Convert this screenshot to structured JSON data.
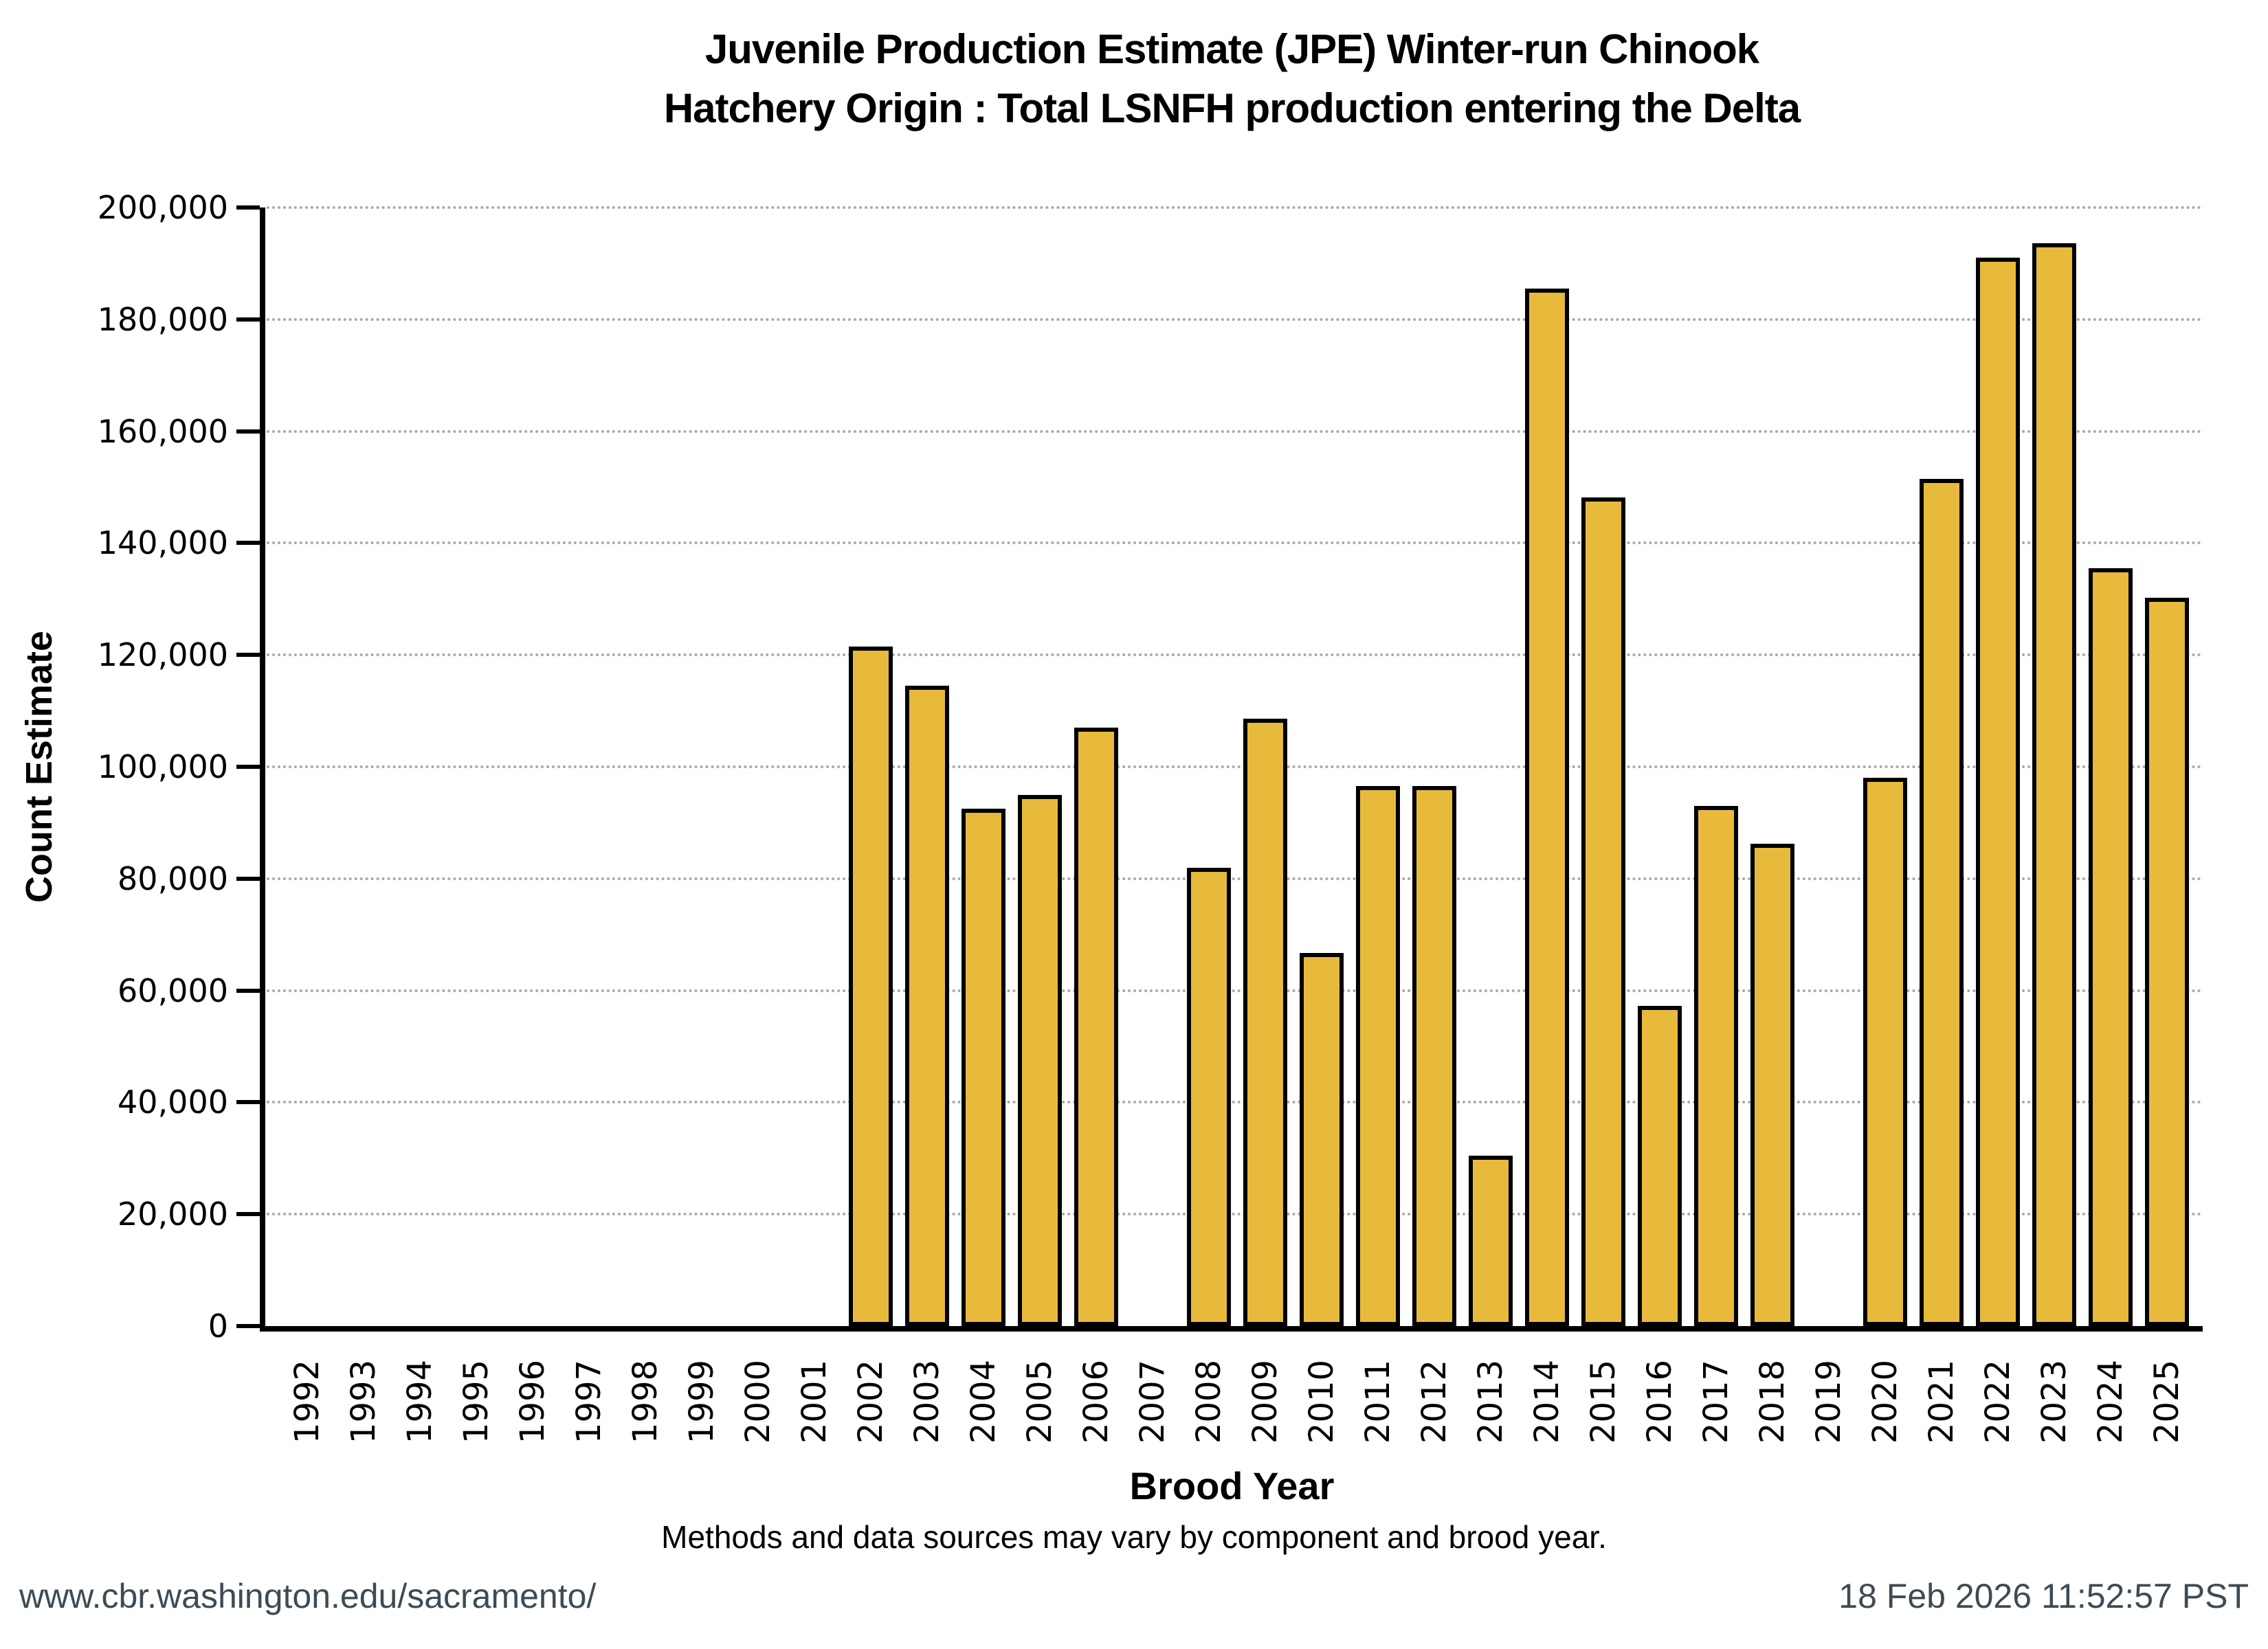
{
  "figure": {
    "title_line1": "Juvenile Production Estimate (JPE) Winter-run Chinook",
    "title_line2": "Hatchery Origin : Total LSNFH production entering the Delta",
    "note": "Methods and data sources may vary by component and brood year.",
    "footer": {
      "url": "www.cbr.washington.edu/sacramento/",
      "timestamp": "18 Feb 2026 11:52:57 PST"
    }
  },
  "colors": {
    "bar_fill": "#E8BA3C",
    "bar_edge": "#000000",
    "grid": "#A8A8A8",
    "axis": "#000000",
    "footer_text": "#3C4B54",
    "background": "#FFFFFF"
  },
  "chart_data": {
    "type": "bar",
    "title": "Juvenile Production Estimate (JPE) Winter-run Chinook — Hatchery Origin : Total LSNFH production entering the Delta",
    "xlabel": "Brood Year",
    "ylabel": "Count Estimate",
    "ylim": [
      0,
      200000
    ],
    "ytick_step": 20000,
    "ytick_labels": [
      "0",
      "20,000",
      "40,000",
      "60,000",
      "80,000",
      "100,000",
      "120,000",
      "140,000",
      "160,000",
      "180,000",
      "200,000"
    ],
    "grid": "horizontal-dotted",
    "legend": "none",
    "categories": [
      "1992",
      "1993",
      "1994",
      "1995",
      "1996",
      "1997",
      "1998",
      "1999",
      "2000",
      "2001",
      "2002",
      "2003",
      "2004",
      "2005",
      "2006",
      "2007",
      "2008",
      "2009",
      "2010",
      "2011",
      "2012",
      "2013",
      "2014",
      "2015",
      "2016",
      "2017",
      "2018",
      "2019",
      "2020",
      "2021",
      "2022",
      "2023",
      "2024",
      "2025"
    ],
    "values": [
      null,
      null,
      null,
      null,
      null,
      null,
      null,
      null,
      null,
      null,
      121500,
      114500,
      92500,
      95000,
      107000,
      null,
      82000,
      108600,
      66700,
      96600,
      96600,
      30500,
      185500,
      148200,
      57200,
      93000,
      86200,
      null,
      98000,
      151500,
      191000,
      193600,
      135500,
      130200
    ],
    "missing_years": [
      "1992",
      "1993",
      "1994",
      "1995",
      "1996",
      "1997",
      "1998",
      "1999",
      "2000",
      "2001",
      "2007",
      "2019"
    ]
  }
}
